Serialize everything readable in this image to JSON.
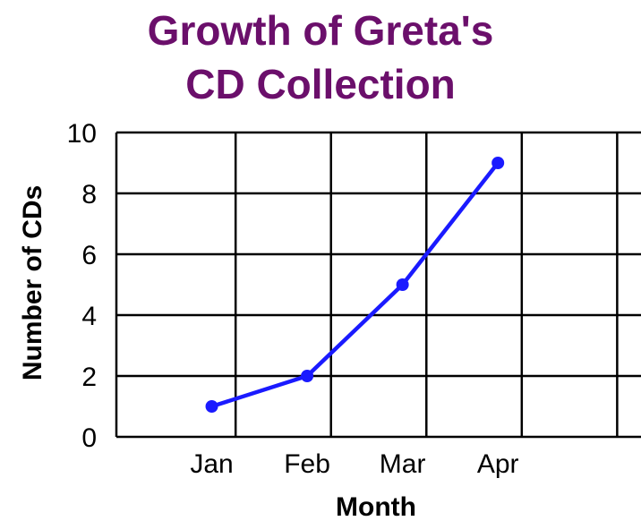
{
  "chart_data": {
    "type": "line",
    "title": [
      "Growth of Greta's",
      "CD Collection"
    ],
    "xlabel": "Month",
    "ylabel": "Number of CDs",
    "categories": [
      "Jan",
      "Feb",
      "Mar",
      "Apr"
    ],
    "series": [
      {
        "values": [
          1,
          2,
          5,
          9
        ]
      }
    ],
    "ylim": [
      0,
      10
    ],
    "yticks": [
      0,
      2,
      4,
      6,
      8,
      10
    ],
    "grid": true,
    "colors": {
      "title": "#6b0f6b",
      "line": "#1a1aff",
      "grid": "#000000"
    }
  }
}
